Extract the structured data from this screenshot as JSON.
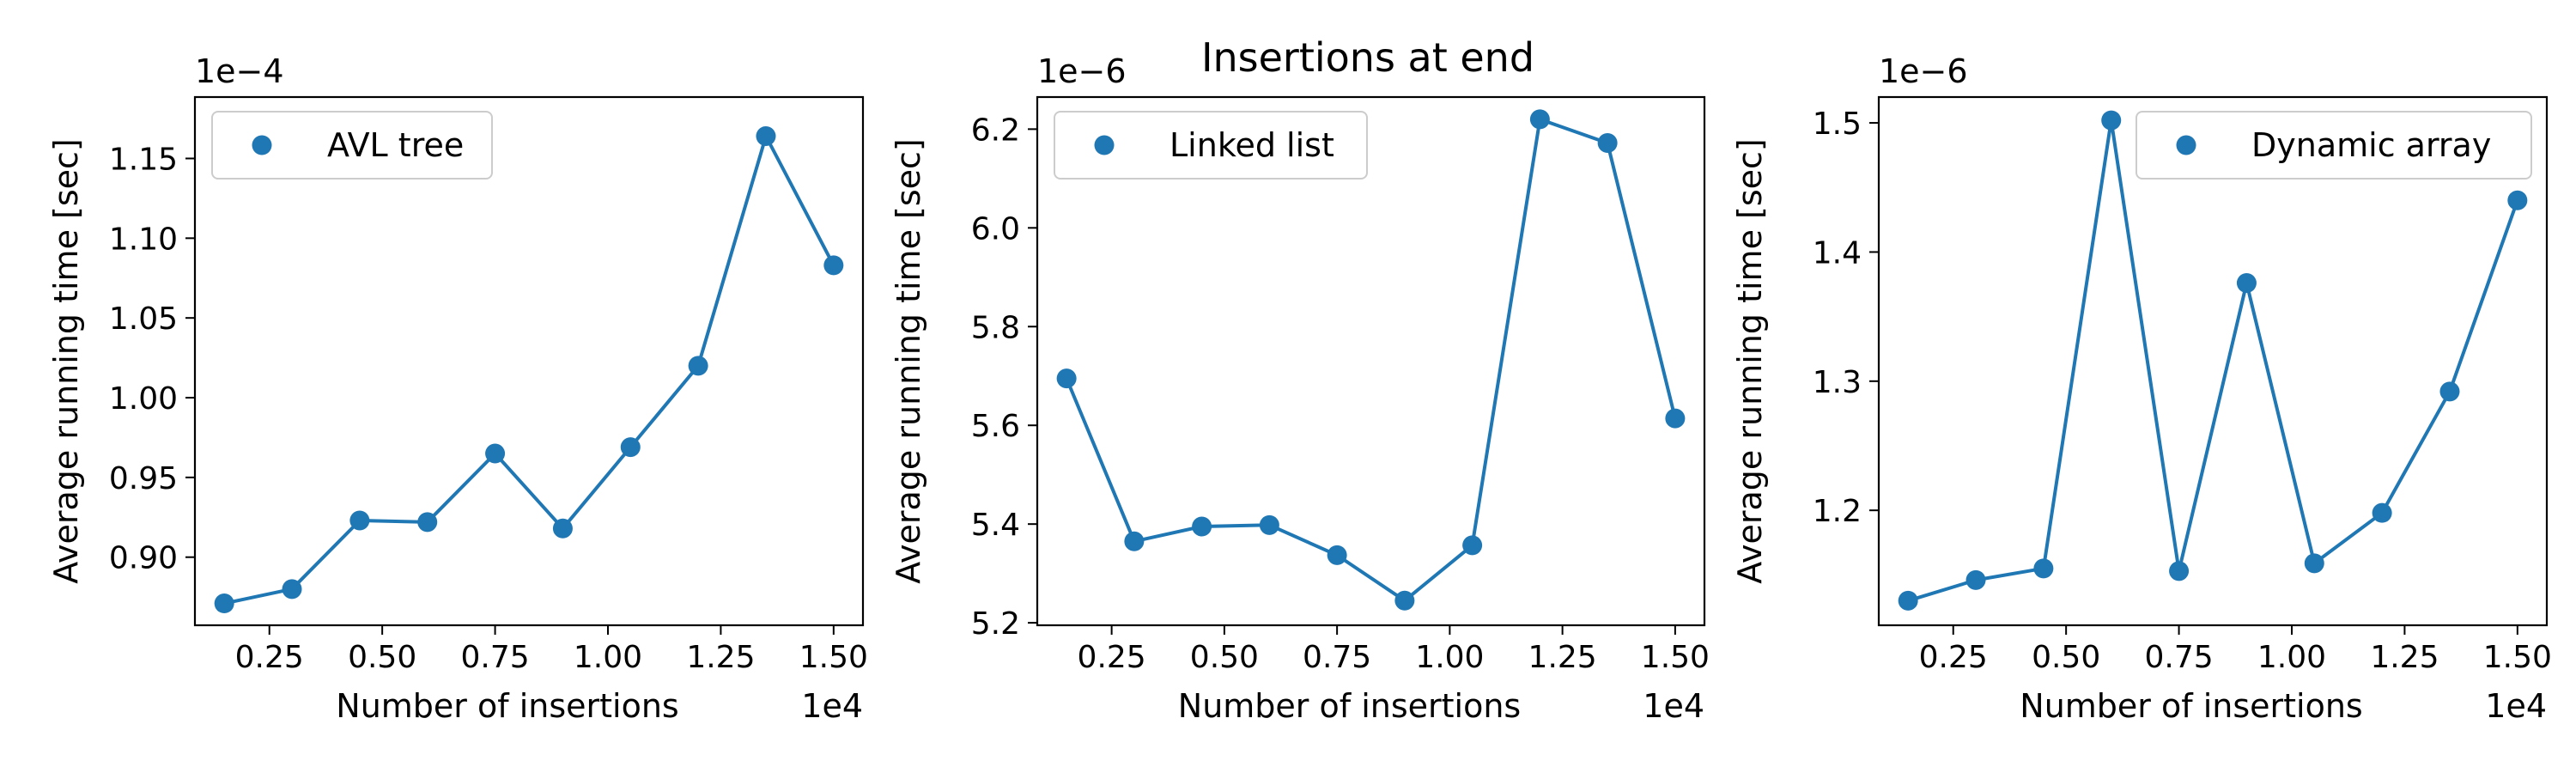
{
  "figure": {
    "suptitle": "Insertions at end"
  },
  "colors": {
    "series": "#1f77b4",
    "axes": "#000000",
    "legend_border": "#cccccc"
  },
  "chart_data": [
    {
      "type": "line",
      "title": "",
      "xlabel": "Number of insertions",
      "ylabel": "Average running time [sec]",
      "x_offset_text": "1e4",
      "y_offset_text": "1e−4",
      "x_scale": 10000,
      "y_scale": 0.0001,
      "xlim": [
        0.085,
        1.565
      ],
      "ylim": [
        0.8573,
        1.1885
      ],
      "xticks": [
        0.25,
        0.5,
        0.75,
        1.0,
        1.25,
        1.5
      ],
      "xtick_labels": [
        "0.25",
        "0.50",
        "0.75",
        "1.00",
        "1.25",
        "1.50"
      ],
      "yticks": [
        0.9,
        0.95,
        1.0,
        1.05,
        1.1,
        1.15
      ],
      "ytick_labels": [
        "0.90",
        "0.95",
        "1.00",
        "1.05",
        "1.10",
        "1.15"
      ],
      "legend_position": "top-left",
      "grid": false,
      "series": [
        {
          "name": "AVL tree",
          "x": [
            0.15,
            0.3,
            0.45,
            0.6,
            0.75,
            0.9,
            1.05,
            1.2,
            1.35,
            1.5
          ],
          "y": [
            0.871,
            0.88,
            0.923,
            0.922,
            0.965,
            0.918,
            0.969,
            1.02,
            1.164,
            1.083
          ]
        }
      ]
    },
    {
      "type": "line",
      "title": "",
      "xlabel": "Number of insertions",
      "ylabel": "Average running time [sec]",
      "x_offset_text": "1e4",
      "y_offset_text": "1e−6",
      "x_scale": 10000,
      "y_scale": 1e-06,
      "xlim": [
        0.085,
        1.565
      ],
      "ylim": [
        5.195,
        6.265
      ],
      "xticks": [
        0.25,
        0.5,
        0.75,
        1.0,
        1.25,
        1.5
      ],
      "xtick_labels": [
        "0.25",
        "0.50",
        "0.75",
        "1.00",
        "1.25",
        "1.50"
      ],
      "yticks": [
        5.2,
        5.4,
        5.6,
        5.8,
        6.0,
        6.2
      ],
      "ytick_labels": [
        "5.2",
        "5.4",
        "5.6",
        "5.8",
        "6.0",
        "6.2"
      ],
      "legend_position": "top-left",
      "grid": false,
      "series": [
        {
          "name": "Linked list",
          "x": [
            0.15,
            0.3,
            0.45,
            0.6,
            0.75,
            0.9,
            1.05,
            1.2,
            1.35,
            1.5
          ],
          "y": [
            5.695,
            5.365,
            5.395,
            5.398,
            5.337,
            5.245,
            5.357,
            6.22,
            6.172,
            5.614
          ]
        }
      ]
    },
    {
      "type": "line",
      "title": "",
      "xlabel": "Number of insertions",
      "ylabel": "Average running time [sec]",
      "x_offset_text": "1e4",
      "y_offset_text": "1e−6",
      "x_scale": 10000,
      "y_scale": 1e-06,
      "xlim": [
        0.085,
        1.565
      ],
      "ylim": [
        1.111,
        1.52
      ],
      "xticks": [
        0.25,
        0.5,
        0.75,
        1.0,
        1.25,
        1.5
      ],
      "xtick_labels": [
        "0.25",
        "0.50",
        "0.75",
        "1.00",
        "1.25",
        "1.50"
      ],
      "yticks": [
        1.2,
        1.3,
        1.4,
        1.5
      ],
      "ytick_labels": [
        "1.2",
        "1.3",
        "1.4",
        "1.5"
      ],
      "legend_position": "top-right",
      "grid": false,
      "series": [
        {
          "name": "Dynamic array",
          "x": [
            0.15,
            0.3,
            0.45,
            0.6,
            0.75,
            0.9,
            1.05,
            1.2,
            1.35,
            1.5
          ],
          "y": [
            1.13,
            1.146,
            1.155,
            1.502,
            1.153,
            1.376,
            1.159,
            1.198,
            1.292,
            1.44
          ]
        }
      ]
    }
  ]
}
